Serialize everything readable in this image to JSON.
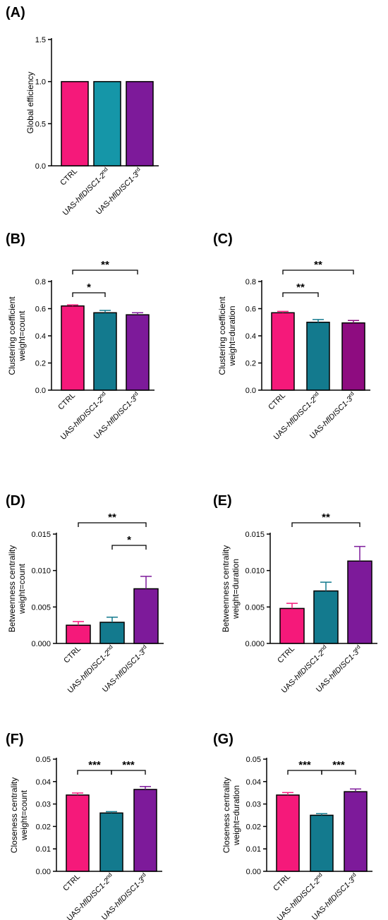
{
  "colors": {
    "ctrl": "#F5197A",
    "teal_a": "#1596A8",
    "teal": "#137A8E",
    "purple": "#7D1A9A",
    "magenta_purple": "#8E0C80"
  },
  "chart_data": [
    {
      "panel": "(A)",
      "type": "bar",
      "categories": [
        "CTRL",
        "UAS-hflDISC1-2nd",
        "UAS-hflDISC1-3rd"
      ],
      "values": [
        1.0,
        1.0,
        1.0
      ],
      "errors": [
        0,
        0,
        0
      ],
      "ylabel": [
        "Global efficiency"
      ],
      "ylim": [
        0,
        1.5
      ],
      "yticks": [
        "0.0",
        "0.5",
        "1.0",
        "1.5"
      ],
      "bar_colors": [
        "ctrl",
        "teal_a",
        "purple"
      ],
      "significance": []
    },
    {
      "panel": "(B)",
      "type": "bar",
      "categories": [
        "CTRL",
        "UAS-hflDISC1-2nd",
        "UAS-hflDISC1-3rd"
      ],
      "values": [
        0.62,
        0.57,
        0.555
      ],
      "errors": [
        0.008,
        0.017,
        0.015
      ],
      "ylabel": [
        "Clustering coefficient",
        "weight=count"
      ],
      "ylim": [
        0,
        0.8
      ],
      "yticks": [
        "0.0",
        "0.2",
        "0.4",
        "0.6",
        "0.8"
      ],
      "bar_colors": [
        "ctrl",
        "teal",
        "purple"
      ],
      "significance": [
        {
          "from": 0,
          "to": 1,
          "label": "*"
        },
        {
          "from": 0,
          "to": 2,
          "label": "**"
        }
      ]
    },
    {
      "panel": "(C)",
      "type": "bar",
      "categories": [
        "CTRL",
        "UAS-hflDISC1-2nd",
        "UAS-hflDISC1-3rd"
      ],
      "values": [
        0.57,
        0.5,
        0.495
      ],
      "errors": [
        0.01,
        0.02,
        0.018
      ],
      "ylabel": [
        "Clustering coefficient",
        "weight=duration"
      ],
      "ylim": [
        0,
        0.8
      ],
      "yticks": [
        "0.0",
        "0.2",
        "0.4",
        "0.6",
        "0.8"
      ],
      "bar_colors": [
        "ctrl",
        "teal",
        "magenta_purple"
      ],
      "significance": [
        {
          "from": 0,
          "to": 1,
          "label": "**"
        },
        {
          "from": 0,
          "to": 2,
          "label": "**"
        }
      ]
    },
    {
      "panel": "(D)",
      "type": "bar",
      "categories": [
        "CTRL",
        "UAS-hflDISC1-2nd",
        "UAS-hflDISC1-3rd"
      ],
      "values": [
        0.0025,
        0.0029,
        0.0075
      ],
      "errors": [
        0.0005,
        0.0007,
        0.0017
      ],
      "ylabel": [
        "Betweenness centrality",
        "weight=count"
      ],
      "ylim": [
        0,
        0.015
      ],
      "yticks": [
        "0.000",
        "0.005",
        "0.010",
        "0.015"
      ],
      "bar_colors": [
        "ctrl",
        "teal",
        "purple"
      ],
      "significance": [
        {
          "from": 1,
          "to": 2,
          "label": "*"
        },
        {
          "from": 0,
          "to": 2,
          "label": "**"
        }
      ]
    },
    {
      "panel": "(E)",
      "type": "bar",
      "categories": [
        "CTRL",
        "UAS-hflDISC1-2nd",
        "UAS-hflDISC1-3rd"
      ],
      "values": [
        0.0048,
        0.0072,
        0.0113
      ],
      "errors": [
        0.0007,
        0.0012,
        0.002
      ],
      "ylabel": [
        "Betweenness centrality",
        "weight=duration"
      ],
      "ylim": [
        0,
        0.015
      ],
      "yticks": [
        "0.000",
        "0.005",
        "0.010",
        "0.015"
      ],
      "bar_colors": [
        "ctrl",
        "teal",
        "purple"
      ],
      "significance": [
        {
          "from": 0,
          "to": 2,
          "label": "**"
        }
      ]
    },
    {
      "panel": "(F)",
      "type": "bar",
      "categories": [
        "CTRL",
        "UAS-hflDISC1-2nd",
        "UAS-hflDISC1-3rd"
      ],
      "values": [
        0.034,
        0.026,
        0.0365
      ],
      "errors": [
        0.0009,
        0.0006,
        0.0013
      ],
      "ylabel": [
        "Closeness centrality",
        "weight=count"
      ],
      "ylim": [
        0,
        0.05
      ],
      "yticks": [
        "0.00",
        "0.01",
        "0.02",
        "0.03",
        "0.04",
        "0.05"
      ],
      "bar_colors": [
        "ctrl",
        "teal",
        "purple"
      ],
      "significance": [
        {
          "from": 0,
          "to": 1,
          "label": "***"
        },
        {
          "from": 1,
          "to": 2,
          "label": "***"
        }
      ]
    },
    {
      "panel": "(G)",
      "type": "bar",
      "categories": [
        "CTRL",
        "UAS-hflDISC1-2nd",
        "UAS-hflDISC1-3rd"
      ],
      "values": [
        0.034,
        0.025,
        0.0355
      ],
      "errors": [
        0.0011,
        0.0007,
        0.0012
      ],
      "ylabel": [
        "Closeness centrality",
        "weight=duration"
      ],
      "ylim": [
        0,
        0.05
      ],
      "yticks": [
        "0.00",
        "0.01",
        "0.02",
        "0.03",
        "0.04",
        "0.05"
      ],
      "bar_colors": [
        "ctrl",
        "teal",
        "purple"
      ],
      "significance": [
        {
          "from": 0,
          "to": 1,
          "label": "***"
        },
        {
          "from": 1,
          "to": 2,
          "label": "***"
        }
      ]
    }
  ]
}
